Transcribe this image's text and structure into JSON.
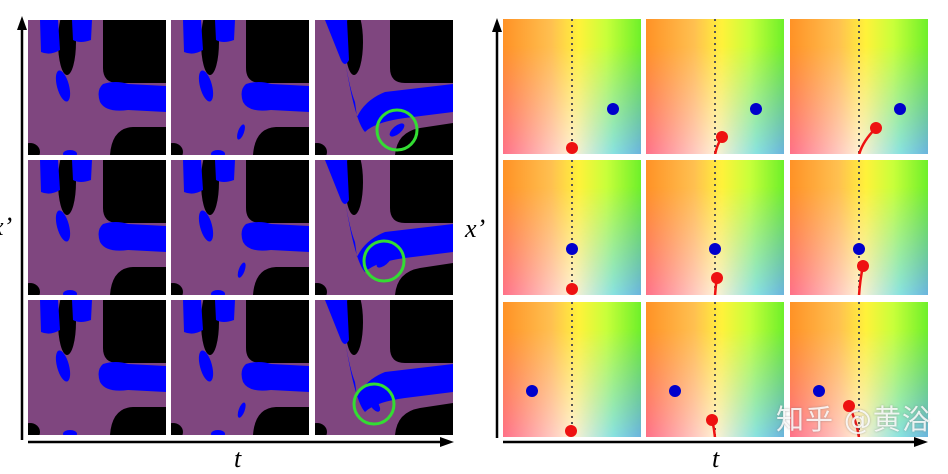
{
  "left_panel": {
    "y_axis_label": "x’",
    "x_axis_label": "t",
    "colors": {
      "background_region": "#7f467f",
      "highlight_region": "#0000ff",
      "void_region": "#000000",
      "circle": "#33dd33"
    }
  },
  "right_panel": {
    "y_axis_label": "x’",
    "x_axis_label": "t",
    "colors": {
      "target_point": "#0000cc",
      "moving_point": "#ee1111",
      "guide_line": "#555555"
    }
  },
  "watermark": "知乎 @黄浴"
}
